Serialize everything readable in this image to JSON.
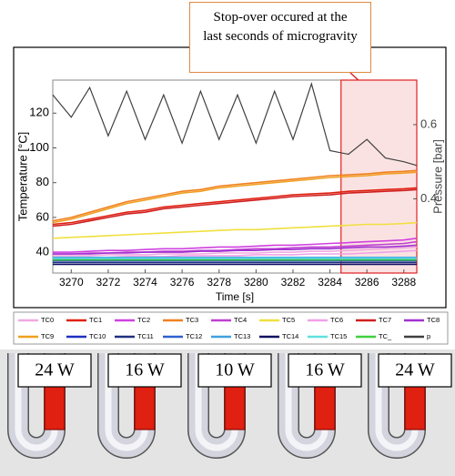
{
  "chart_data": {
    "type": "line",
    "annotation": "Stop-over occured at the last seconds of microgravity",
    "xlabel": "Time [s]",
    "ylabel": "Temperature [°C]",
    "y2label": "Pressure [bar]",
    "x": [
      3269,
      3270,
      3271,
      3272,
      3273,
      3274,
      3275,
      3276,
      3277,
      3278,
      3279,
      3280,
      3281,
      3282,
      3283,
      3284,
      3285,
      3286,
      3287,
      3288,
      3288.7
    ],
    "xlim": [
      3269,
      3288.7
    ],
    "xticks": [
      3270,
      3272,
      3274,
      3276,
      3278,
      3280,
      3282,
      3284,
      3286,
      3288
    ],
    "ylim": [
      28,
      139
    ],
    "yticks": [
      40,
      60,
      80,
      100,
      120
    ],
    "y2lim": [
      0.2,
      0.72
    ],
    "y2ticks": [
      0.4,
      0.6
    ],
    "highlight_xlim": [
      3284.6,
      3288.7
    ],
    "series": [
      {
        "name": "TC0",
        "color": "#f0a8e0",
        "values": [
          38,
          38,
          38,
          38.5,
          38.5,
          38.5,
          39,
          39,
          39,
          39.5,
          39.5,
          39.5,
          40,
          40,
          40.5,
          40.5,
          41,
          41.5,
          42,
          42.5,
          43
        ]
      },
      {
        "name": "TC1",
        "color": "#e02010",
        "values": [
          56,
          57,
          59,
          61,
          63,
          64,
          66,
          67,
          68,
          69,
          70,
          71,
          72,
          73,
          73.5,
          74,
          75,
          75.5,
          76,
          76.5,
          77
        ]
      },
      {
        "name": "TC2",
        "color": "#d040e0",
        "values": [
          40,
          40,
          40.5,
          41,
          41,
          41.5,
          42,
          42,
          42.5,
          43,
          43,
          43.5,
          44,
          44,
          44.5,
          45,
          45.5,
          46,
          46.5,
          47,
          48
        ]
      },
      {
        "name": "TC3",
        "color": "#f08020",
        "values": [
          58,
          60,
          63,
          66,
          69,
          71,
          73,
          75,
          76,
          78,
          79,
          80,
          81,
          82,
          83,
          84,
          84.5,
          85,
          86,
          86.5,
          87
        ]
      },
      {
        "name": "TC4",
        "color": "#c040d0",
        "values": [
          39,
          39,
          39.5,
          39.5,
          40,
          40,
          40.5,
          40.5,
          41,
          41,
          41.5,
          42,
          42,
          42.5,
          43,
          43,
          43.5,
          44,
          44.5,
          45,
          46
        ]
      },
      {
        "name": "TC5",
        "color": "#f0e040",
        "values": [
          48,
          48.5,
          49,
          49.5,
          50,
          50.5,
          51,
          51.5,
          52,
          52.5,
          53,
          53,
          53.5,
          54,
          54.5,
          55,
          55.5,
          56,
          56,
          56.5,
          57
        ]
      },
      {
        "name": "TC6",
        "color": "#f0a0e8",
        "values": [
          37,
          37,
          37,
          37,
          37.5,
          37.5,
          37.5,
          38,
          38,
          38,
          38,
          38.5,
          38.5,
          38.5,
          39,
          39,
          39,
          39.5,
          40,
          40.5,
          41
        ]
      },
      {
        "name": "TC7",
        "color": "#d02020",
        "values": [
          55,
          56,
          58,
          60,
          62,
          63,
          65,
          66,
          67,
          68,
          69,
          70,
          71,
          72,
          72.5,
          73,
          74,
          74.5,
          75,
          75.5,
          76
        ]
      },
      {
        "name": "TC8",
        "color": "#a030d0",
        "values": [
          39,
          39,
          39,
          39.5,
          39.5,
          40,
          40,
          40,
          40.5,
          40.5,
          41,
          41,
          41.5,
          41.5,
          42,
          42,
          42.5,
          43,
          43,
          43.5,
          44
        ]
      },
      {
        "name": "TC9",
        "color": "#f0a020",
        "values": [
          57,
          59,
          62,
          65,
          68,
          70,
          72,
          74,
          75,
          77,
          78,
          79,
          80,
          81,
          82,
          83,
          83.5,
          84,
          85,
          85.5,
          86
        ]
      },
      {
        "name": "TC10",
        "color": "#2030c0",
        "values": [
          35,
          35,
          35,
          35,
          35,
          35,
          35,
          35,
          35,
          35,
          35,
          35,
          35,
          35,
          35,
          35,
          35,
          35,
          35,
          35,
          35
        ]
      },
      {
        "name": "TC11",
        "color": "#203080",
        "values": [
          34,
          34,
          34,
          34,
          34,
          34,
          34,
          34,
          34,
          34,
          34,
          34,
          34,
          34,
          34,
          34,
          34,
          34,
          34,
          34,
          34
        ]
      },
      {
        "name": "TC12",
        "color": "#3060d0",
        "values": [
          36,
          36,
          36,
          36,
          36,
          36,
          36,
          36,
          36,
          36,
          36,
          36,
          36,
          36,
          36,
          36,
          36,
          36,
          36,
          36,
          36
        ]
      },
      {
        "name": "TC13",
        "color": "#40a0e0",
        "values": [
          37,
          37,
          37,
          37,
          37,
          37,
          37,
          37,
          37,
          37,
          37,
          37,
          37,
          37,
          37,
          37,
          37,
          37,
          37,
          37,
          37
        ]
      },
      {
        "name": "TC14",
        "color": "#101060",
        "values": [
          33,
          33,
          33,
          33,
          33,
          33,
          33,
          33,
          33,
          33,
          33,
          33,
          33,
          33,
          33,
          33,
          33,
          33,
          33,
          33,
          33
        ]
      },
      {
        "name": "TC15",
        "color": "#60e0e0",
        "values": [
          36.5,
          36.5,
          36.5,
          36.5,
          36.5,
          36.5,
          36.5,
          36.5,
          36.5,
          36.5,
          36.5,
          36.5,
          36.5,
          36.5,
          36.5,
          36.5,
          36.5,
          36.5,
          36.5,
          36.5,
          36.5
        ]
      },
      {
        "name": "TC_",
        "color": "#40d040",
        "values": [
          35.5,
          35.5,
          35.5,
          35.5,
          35.5,
          35.5,
          35.5,
          35.5,
          35.5,
          35.5,
          35.5,
          35.5,
          35.5,
          35.5,
          35.5,
          35.5,
          35.5,
          35.5,
          35.5,
          35.5,
          35.5
        ]
      },
      {
        "name": "p",
        "color": "#404040",
        "axis": "y2",
        "values": [
          0.68,
          0.62,
          0.7,
          0.57,
          0.69,
          0.56,
          0.68,
          0.55,
          0.69,
          0.56,
          0.68,
          0.55,
          0.69,
          0.56,
          0.71,
          0.53,
          0.52,
          0.56,
          0.51,
          0.5,
          0.49
        ]
      }
    ]
  },
  "diagram": {
    "heaters": [
      "24 W",
      "16 W",
      "10 W",
      "16 W",
      "24 W"
    ]
  }
}
